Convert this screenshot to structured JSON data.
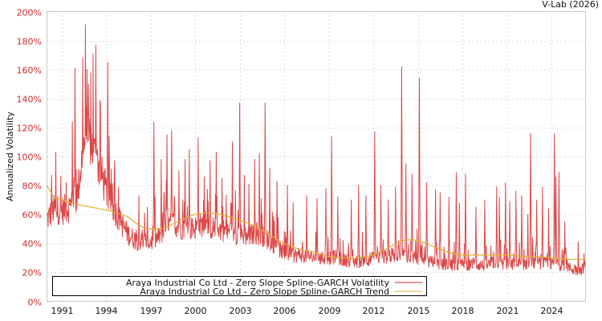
{
  "credit": "V-Lab (2026)",
  "chart_data": {
    "type": "line",
    "title": "",
    "xlabel": "",
    "ylabel": "Annualized Volatility",
    "xlim": [
      1990.0,
      2026.3
    ],
    "ylim": [
      0,
      200
    ],
    "y_ticks": [
      "0%",
      "20%",
      "40%",
      "60%",
      "80%",
      "100%",
      "120%",
      "140%",
      "160%",
      "180%",
      "200%"
    ],
    "y_tick_values": [
      0,
      20,
      40,
      60,
      80,
      100,
      120,
      140,
      160,
      180,
      200
    ],
    "x_ticks": [
      "1991",
      "1994",
      "1997",
      "2000",
      "2003",
      "2006",
      "2009",
      "2012",
      "2015",
      "2018",
      "2021",
      "2024"
    ],
    "x_tick_values": [
      1991,
      1994,
      1997,
      2000,
      2003,
      2006,
      2009,
      2012,
      2015,
      2018,
      2021,
      2024
    ],
    "grid": true,
    "legend_position": "lower center",
    "series": [
      {
        "name": "Araya Industrial Co Ltd - Zero Slope Spline-GARCH Volatility",
        "color": "#d62728",
        "baseline": [
          [
            1990.0,
            58
          ],
          [
            1990.5,
            65
          ],
          [
            1991.0,
            64
          ],
          [
            1991.5,
            66
          ],
          [
            1992.0,
            72
          ],
          [
            1992.3,
            95
          ],
          [
            1992.6,
            120
          ],
          [
            1993.0,
            110
          ],
          [
            1993.5,
            95
          ],
          [
            1994.0,
            78
          ],
          [
            1994.5,
            66
          ],
          [
            1995.0,
            55
          ],
          [
            1995.5,
            47
          ],
          [
            1996.0,
            43
          ],
          [
            1996.5,
            42
          ],
          [
            1997.0,
            42
          ],
          [
            1997.5,
            45
          ],
          [
            1998.0,
            52
          ],
          [
            1998.5,
            55
          ],
          [
            1999.0,
            52
          ],
          [
            1999.5,
            51
          ],
          [
            2000.0,
            52
          ],
          [
            2000.5,
            54
          ],
          [
            2001.0,
            52
          ],
          [
            2001.5,
            51
          ],
          [
            2002.0,
            50
          ],
          [
            2002.5,
            48
          ],
          [
            2003.0,
            47
          ],
          [
            2003.5,
            46
          ],
          [
            2004.0,
            48
          ],
          [
            2004.5,
            46
          ],
          [
            2005.0,
            43
          ],
          [
            2005.5,
            38
          ],
          [
            2006.0,
            34
          ],
          [
            2006.5,
            32
          ],
          [
            2007.0,
            33
          ],
          [
            2007.5,
            32
          ],
          [
            2008.0,
            31
          ],
          [
            2008.5,
            30
          ],
          [
            2009.0,
            31
          ],
          [
            2009.5,
            31
          ],
          [
            2010.0,
            29
          ],
          [
            2010.5,
            28
          ],
          [
            2011.0,
            28
          ],
          [
            2011.5,
            30
          ],
          [
            2012.0,
            30
          ],
          [
            2012.5,
            31
          ],
          [
            2013.0,
            32
          ],
          [
            2013.5,
            33
          ],
          [
            2014.0,
            33
          ],
          [
            2014.5,
            32
          ],
          [
            2015.0,
            31
          ],
          [
            2015.5,
            29
          ],
          [
            2016.0,
            27
          ],
          [
            2016.5,
            26
          ],
          [
            2017.0,
            26
          ],
          [
            2017.5,
            25
          ],
          [
            2018.0,
            26
          ],
          [
            2018.5,
            26
          ],
          [
            2019.0,
            26
          ],
          [
            2019.5,
            25
          ],
          [
            2020.0,
            27
          ],
          [
            2020.5,
            27
          ],
          [
            2021.0,
            26
          ],
          [
            2021.5,
            26
          ],
          [
            2022.0,
            26
          ],
          [
            2022.5,
            27
          ],
          [
            2023.0,
            27
          ],
          [
            2023.5,
            27
          ],
          [
            2024.0,
            26
          ],
          [
            2024.5,
            26
          ],
          [
            2025.0,
            25
          ],
          [
            2025.5,
            22
          ],
          [
            2026.0,
            22
          ],
          [
            2026.3,
            25
          ]
        ],
        "peaks": [
          [
            1990.3,
            87
          ],
          [
            1990.6,
            103
          ],
          [
            1991.3,
            82
          ],
          [
            1991.7,
            124
          ],
          [
            1991.9,
            161
          ],
          [
            1992.4,
            168
          ],
          [
            1992.6,
            191
          ],
          [
            1992.8,
            150
          ],
          [
            1993.1,
            171
          ],
          [
            1993.3,
            177
          ],
          [
            1993.6,
            138
          ],
          [
            1994.1,
            165
          ],
          [
            1994.2,
            114
          ],
          [
            1996.2,
            73
          ],
          [
            1997.2,
            124
          ],
          [
            1997.7,
            98
          ],
          [
            1998.1,
            115
          ],
          [
            1998.4,
            118
          ],
          [
            1998.9,
            90
          ],
          [
            1999.3,
            98
          ],
          [
            1999.6,
            105
          ],
          [
            2000.2,
            113
          ],
          [
            2000.6,
            86
          ],
          [
            2001.0,
            97
          ],
          [
            2001.4,
            103
          ],
          [
            2001.8,
            85
          ],
          [
            2002.5,
            110
          ],
          [
            2003.0,
            137
          ],
          [
            2003.3,
            87
          ],
          [
            2003.6,
            81
          ],
          [
            2004.0,
            98
          ],
          [
            2004.3,
            102
          ],
          [
            2004.7,
            137
          ],
          [
            2005.0,
            92
          ],
          [
            2005.5,
            83
          ],
          [
            2006.2,
            80
          ],
          [
            2006.6,
            68
          ],
          [
            2007.5,
            73
          ],
          [
            2008.2,
            71
          ],
          [
            2008.8,
            78
          ],
          [
            2009.2,
            114
          ],
          [
            2009.6,
            72
          ],
          [
            2010.5,
            70
          ],
          [
            2011.0,
            80
          ],
          [
            2011.5,
            73
          ],
          [
            2012.1,
            117
          ],
          [
            2012.5,
            80
          ],
          [
            2013.0,
            70
          ],
          [
            2013.5,
            79
          ],
          [
            2013.9,
            162
          ],
          [
            2014.2,
            95
          ],
          [
            2014.6,
            88
          ],
          [
            2015.1,
            154
          ],
          [
            2015.6,
            82
          ],
          [
            2016.2,
            77
          ],
          [
            2016.5,
            75
          ],
          [
            2017.1,
            72
          ],
          [
            2017.6,
            89
          ],
          [
            2017.8,
            68
          ],
          [
            2018.2,
            88
          ],
          [
            2018.9,
            65
          ],
          [
            2019.5,
            70
          ],
          [
            2020.3,
            79
          ],
          [
            2020.5,
            72
          ],
          [
            2020.9,
            82
          ],
          [
            2021.2,
            69
          ],
          [
            2021.6,
            76
          ],
          [
            2022.0,
            73
          ],
          [
            2022.4,
            60
          ],
          [
            2022.6,
            116
          ],
          [
            2023.0,
            70
          ],
          [
            2023.4,
            79
          ],
          [
            2023.8,
            64
          ],
          [
            2024.2,
            116
          ],
          [
            2024.3,
            86
          ],
          [
            2024.5,
            89
          ],
          [
            2024.9,
            55
          ],
          [
            2025.8,
            41
          ],
          [
            2026.2,
            33
          ]
        ]
      },
      {
        "name": "Araya Industrial Co Ltd - Zero Slope Spline-GARCH Trend",
        "color": "#e0b030",
        "x": [
          1990.0,
          1990.5,
          1991.0,
          1992.0,
          1993.0,
          1994.0,
          1995.0,
          1995.5,
          1996.0,
          1996.5,
          1997.0,
          1997.5,
          1998.0,
          1999.0,
          2000.0,
          2001.0,
          2002.0,
          2003.0,
          2004.0,
          2005.0,
          2006.0,
          2007.0,
          2008.0,
          2009.0,
          2010.0,
          2011.0,
          2012.0,
          2013.0,
          2014.0,
          2015.0,
          2016.0,
          2017.0,
          2018.0,
          2019.0,
          2020.0,
          2021.0,
          2022.0,
          2023.0,
          2024.0,
          2025.0,
          2026.3
        ],
        "values": [
          80,
          72,
          70,
          67,
          65,
          63,
          60,
          58,
          54,
          51,
          50,
          50,
          51,
          56,
          60,
          61,
          59,
          56,
          52,
          46,
          40,
          36,
          34,
          31,
          30,
          30,
          32,
          37,
          42,
          42,
          38,
          34,
          32,
          32,
          32,
          32,
          31,
          31,
          30,
          29,
          29
        ]
      }
    ]
  }
}
